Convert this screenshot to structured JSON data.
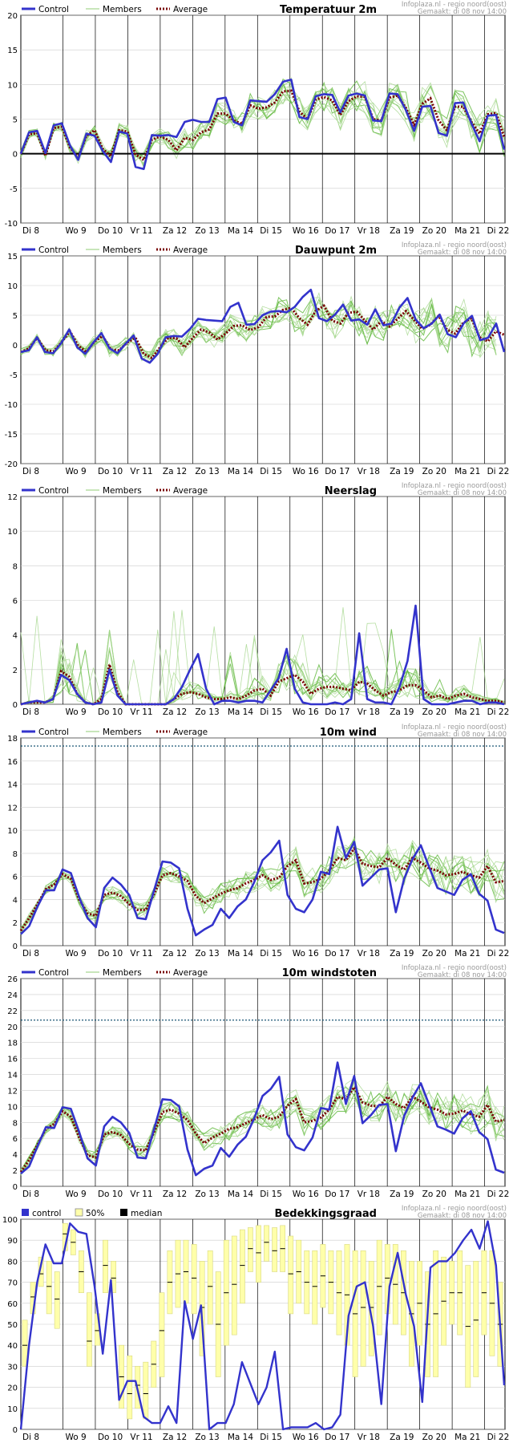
{
  "source": {
    "line1": "Infoplaza.nl - regio noord(oost)",
    "line2": "Gemaakt: di 08 nov  14:00"
  },
  "legend": {
    "control": "Control",
    "members": "Members",
    "average": "Average"
  },
  "cloud_legend": {
    "control": "control",
    "band": "50%",
    "median": "median"
  },
  "x_ticks": [
    "Di 8",
    "Wo 9",
    "Do 10",
    "Vr 11",
    "Za 12",
    "Zo 13",
    "Ma 14",
    "Di 15",
    "Wo 16",
    "Do 17",
    "Vr 18",
    "Za 19",
    "Zo 20",
    "Ma 21",
    "Di 22"
  ],
  "colors": {
    "control": "#3333cc",
    "members": "#66bb44",
    "members_light": "#a8d890",
    "average": "#770000",
    "band": "#ffffaa",
    "band_edge": "#d8d880",
    "threshold": "#004466",
    "grid": "#cccccc"
  },
  "chart_data": [
    {
      "type": "line",
      "title": "Temperatuur 2m",
      "ylim": [
        -10,
        20
      ],
      "yticks": [
        -10,
        -5,
        0,
        5,
        10,
        15,
        20
      ],
      "zero_line": true,
      "series": [
        {
          "name": "Control",
          "values": [
            0,
            3.1,
            3.3,
            0.1,
            4.1,
            4.4,
            1.2,
            -0.9,
            2.9,
            2.6,
            0.4,
            -1.2,
            3.2,
            2.9,
            -1.9,
            -2.2,
            2.7,
            2.6,
            2.7,
            2.4,
            4.6,
            4.9,
            4.6,
            4.6,
            7.9,
            8.1,
            4.6,
            4.1,
            7.7,
            7.6,
            7.5,
            8.6,
            10.4,
            10.7,
            5.3,
            5.0,
            8.3,
            8.6,
            8.5,
            6.0,
            8.4,
            8.7,
            8.4,
            4.8,
            4.7,
            8.7,
            8.6,
            6.3,
            3.3,
            6.8,
            6.9,
            3.0,
            2.6,
            7.3,
            7.4,
            4.4,
            1.8,
            5.5,
            5.6,
            0.6
          ]
        },
        {
          "name": "Average",
          "values": [
            0,
            2.8,
            3.0,
            -0.3,
            3.7,
            3.9,
            0.9,
            -0.6,
            2.6,
            3.4,
            0.7,
            -0.4,
            3.4,
            3.2,
            -0.1,
            -0.9,
            2.0,
            2.5,
            2.0,
            0.5,
            2.3,
            2.0,
            3.1,
            3.5,
            5.8,
            5.8,
            4.8,
            4.3,
            7.0,
            6.5,
            6.7,
            7.4,
            9.0,
            9.1,
            6.1,
            5.0,
            7.8,
            8.2,
            7.7,
            5.6,
            7.6,
            8.3,
            8.2,
            5.0,
            4.8,
            8.1,
            8.4,
            6.6,
            4.2,
            7.2,
            8.0,
            4.8,
            3.4,
            6.8,
            6.8,
            4.6,
            2.9,
            5.7,
            5.9,
            2.4
          ]
        }
      ]
    },
    {
      "type": "line",
      "title": "Dauwpunt 2m",
      "ylim": [
        -20,
        15
      ],
      "yticks": [
        -20,
        -15,
        -10,
        -5,
        0,
        5,
        10,
        15
      ],
      "zero_line": false,
      "series": [
        {
          "name": "Control",
          "values": [
            -1.2,
            -0.9,
            1.3,
            -1.2,
            -1.4,
            0.3,
            2.6,
            -0.4,
            -1.5,
            0.4,
            2.0,
            -0.6,
            -1.4,
            0.2,
            1.6,
            -2.3,
            -3.0,
            -1.5,
            1.3,
            1.5,
            1.4,
            2.7,
            4.4,
            4.2,
            4.1,
            4.0,
            6.4,
            7.1,
            3.4,
            3.5,
            5.0,
            5.6,
            5.7,
            5.5,
            6.4,
            8.1,
            9.3,
            4.5,
            4.0,
            5.1,
            6.8,
            4.1,
            4.3,
            3.4,
            6.0,
            3.3,
            3.6,
            6.3,
            7.9,
            4.3,
            2.8,
            3.6,
            5.1,
            1.8,
            1.3,
            3.7,
            4.9,
            0.8,
            1.2,
            3.6,
            -1.2
          ]
        },
        {
          "name": "Average",
          "values": [
            -1.2,
            -0.6,
            1.2,
            -0.9,
            -1.1,
            0.5,
            2.3,
            -0.1,
            -1.2,
            0.6,
            1.5,
            -0.8,
            -0.9,
            0.4,
            1.2,
            -1.5,
            -2.2,
            -0.4,
            1.2,
            1.1,
            -0.4,
            1.2,
            2.6,
            2.1,
            0.9,
            1.9,
            3.2,
            3.3,
            2.5,
            3.0,
            4.7,
            4.8,
            5.9,
            6.2,
            4.5,
            3.4,
            5.7,
            6.6,
            4.1,
            3.6,
            5.4,
            5.6,
            4.1,
            2.6,
            4.0,
            3.1,
            4.4,
            5.7,
            4.2,
            2.7,
            3.4,
            4.9,
            2.6,
            1.9,
            3.7,
            4.5,
            1.3,
            0.6,
            2.3,
            1.7
          ]
        }
      ]
    },
    {
      "type": "line",
      "title": "Neerslag",
      "ylim": [
        0,
        12
      ],
      "yticks": [
        0,
        2,
        4,
        6,
        8,
        10,
        12
      ],
      "zero_line": false,
      "series": [
        {
          "name": "Control",
          "values": [
            0,
            0.1,
            0.2,
            0.1,
            0.3,
            1.7,
            1.4,
            0.6,
            0.1,
            0,
            0.1,
            2.0,
            0.5,
            0,
            0,
            0,
            0,
            0,
            0,
            0.3,
            1.0,
            2.0,
            2.9,
            0.9,
            0,
            0.2,
            0.2,
            0.1,
            0.2,
            0.2,
            0.1,
            0.8,
            1.5,
            3.2,
            0.9,
            0.1,
            0,
            0,
            0,
            0.1,
            0,
            0.3,
            4.1,
            0.3,
            0.1,
            0.1,
            0,
            1.0,
            2.5,
            5.7,
            0.3,
            0,
            0,
            0,
            0.1,
            0.2,
            0.2,
            0,
            0.1,
            0.1,
            0
          ]
        },
        {
          "name": "Average",
          "values": [
            0,
            0.1,
            0.1,
            0.1,
            0.3,
            1.9,
            1.6,
            0.6,
            0.1,
            0,
            0.3,
            2.3,
            0.7,
            0,
            0,
            0,
            0,
            0,
            0,
            0.3,
            0.6,
            0.7,
            0.6,
            0.4,
            0.3,
            0.3,
            0.4,
            0.3,
            0.5,
            0.8,
            0.9,
            0.5,
            1.3,
            1.5,
            1.7,
            1.3,
            0.6,
            0.9,
            1.0,
            1.0,
            0.9,
            0.8,
            1.3,
            1.2,
            0.8,
            0.5,
            0.7,
            0.8,
            1.1,
            1.1,
            0.8,
            0.4,
            0.5,
            0.3,
            0.5,
            0.6,
            0.4,
            0.3,
            0.2,
            0.2,
            0.1
          ]
        }
      ]
    },
    {
      "type": "line",
      "title": "10m wind",
      "ylim": [
        0,
        18
      ],
      "yticks": [
        0,
        2,
        4,
        6,
        8,
        10,
        12,
        14,
        16,
        18
      ],
      "threshold": 17.3,
      "zero_line": false,
      "series": [
        {
          "name": "Control",
          "values": [
            1.0,
            1.7,
            3.4,
            4.8,
            4.8,
            6.6,
            6.3,
            4.2,
            2.4,
            1.6,
            5.0,
            5.9,
            5.3,
            4.4,
            2.4,
            2.3,
            4.8,
            7.3,
            7.2,
            6.7,
            3.2,
            0.9,
            1.4,
            1.8,
            3.2,
            2.4,
            3.4,
            4.0,
            5.5,
            7.4,
            8.1,
            9.1,
            4.4,
            3.2,
            2.9,
            4.0,
            6.4,
            6.2,
            10.3,
            7.6,
            9.0,
            5.2,
            5.9,
            6.6,
            6.7,
            2.9,
            5.8,
            7.5,
            8.7,
            6.8,
            5.0,
            4.7,
            4.4,
            5.7,
            6.2,
            4.5,
            3.9,
            1.4,
            1.1
          ]
        },
        {
          "name": "Average",
          "values": [
            1.3,
            2.4,
            3.6,
            4.9,
            5.3,
            6.2,
            5.8,
            4.0,
            2.8,
            2.6,
            4.4,
            4.6,
            4.3,
            3.6,
            3.1,
            3.1,
            4.5,
            6.1,
            6.3,
            6.0,
            5.6,
            4.3,
            3.7,
            4.1,
            4.5,
            4.8,
            5.0,
            5.4,
            5.7,
            6.1,
            5.7,
            5.9,
            6.9,
            7.4,
            5.4,
            5.5,
            5.8,
            6.5,
            7.6,
            7.4,
            8.4,
            7.1,
            6.9,
            6.8,
            7.6,
            7.0,
            6.6,
            7.6,
            7.2,
            6.7,
            6.5,
            6.1,
            6.2,
            6.4,
            6.1,
            5.9,
            6.9,
            5.5,
            5.6
          ]
        }
      ]
    },
    {
      "type": "line",
      "title": "10m windstoten",
      "ylim": [
        0,
        26
      ],
      "yticks": [
        0,
        2,
        4,
        6,
        8,
        10,
        12,
        14,
        16,
        18,
        20,
        22,
        24,
        26
      ],
      "threshold": 20.8,
      "zero_line": false,
      "series": [
        {
          "name": "Control",
          "values": [
            1.6,
            2.5,
            5.0,
            7.4,
            7.3,
            9.9,
            9.7,
            6.8,
            3.5,
            2.6,
            7.5,
            8.7,
            8.0,
            6.7,
            3.6,
            3.5,
            7.2,
            10.9,
            10.8,
            10.0,
            4.6,
            1.4,
            2.2,
            2.6,
            4.8,
            3.7,
            5.2,
            6.2,
            8.5,
            11.3,
            12.2,
            13.7,
            6.5,
            4.9,
            4.5,
            6.1,
            9.8,
            9.6,
            15.5,
            10.3,
            13.8,
            7.9,
            8.9,
            10.2,
            10.3,
            4.4,
            8.8,
            11.1,
            12.9,
            10.2,
            7.5,
            7.1,
            6.6,
            8.5,
            9.4,
            6.8,
            5.9,
            2.1,
            1.7
          ]
        },
        {
          "name": "Average",
          "values": [
            1.8,
            3.3,
            5.2,
            7.2,
            7.8,
            9.4,
            8.7,
            6.1,
            3.9,
            3.6,
            6.5,
            6.8,
            6.4,
            5.3,
            4.6,
            4.5,
            6.8,
            9.3,
            9.6,
            9.1,
            8.3,
            6.6,
            5.4,
            6.1,
            6.6,
            7.2,
            7.4,
            7.9,
            8.4,
            8.9,
            8.4,
            8.7,
            10.1,
            10.9,
            8.0,
            8.2,
            8.6,
            9.6,
            11.2,
            10.9,
            12.4,
            10.5,
            10.1,
            10.0,
            11.2,
            10.3,
            9.8,
            11.2,
            10.6,
            9.9,
            9.6,
            9.0,
            9.1,
            9.5,
            9.0,
            8.7,
            10.2,
            8.1,
            8.3
          ]
        }
      ]
    },
    {
      "type": "line",
      "title": "Bedekkingsgraad",
      "ylim": [
        0,
        100
      ],
      "yticks": [
        0,
        10,
        20,
        30,
        40,
        50,
        60,
        70,
        80,
        90,
        100
      ],
      "series": [
        {
          "name": "control",
          "values": [
            0,
            40,
            70,
            88,
            79,
            79,
            98,
            94,
            93,
            68,
            36,
            71,
            14,
            23,
            23,
            6,
            3,
            3,
            11,
            3,
            61,
            43,
            59,
            0,
            3,
            3,
            12,
            32,
            22,
            12,
            20,
            37,
            0,
            1,
            1,
            1,
            3,
            0,
            1,
            7,
            54,
            68,
            70,
            49,
            12,
            68,
            84,
            64,
            49,
            13,
            77,
            80,
            80,
            84,
            90,
            95,
            86,
            99,
            78,
            21
          ]
        },
        {
          "name": "50%",
          "ranges": [
            [
              30,
              52
            ],
            [
              55,
              70
            ],
            [
              68,
              82
            ],
            [
              55,
              80
            ],
            [
              48,
              75
            ],
            [
              85,
              98
            ],
            [
              83,
              95
            ],
            [
              65,
              85
            ],
            [
              30,
              65
            ],
            [
              40,
              55
            ],
            [
              65,
              90
            ],
            [
              65,
              80
            ],
            [
              10,
              40
            ],
            [
              5,
              35
            ],
            [
              10,
              30
            ],
            [
              5,
              32
            ],
            [
              20,
              42
            ],
            [
              25,
              65
            ],
            [
              55,
              85
            ],
            [
              58,
              90
            ],
            [
              60,
              90
            ],
            [
              55,
              88
            ],
            [
              35,
              80
            ],
            [
              50,
              85
            ],
            [
              25,
              75
            ],
            [
              40,
              90
            ],
            [
              45,
              92
            ],
            [
              60,
              95
            ],
            [
              75,
              96
            ],
            [
              70,
              97
            ],
            [
              80,
              97
            ],
            [
              75,
              96
            ],
            [
              75,
              97
            ],
            [
              55,
              92
            ],
            [
              60,
              90
            ],
            [
              55,
              85
            ],
            [
              50,
              85
            ],
            [
              58,
              88
            ],
            [
              55,
              85
            ],
            [
              45,
              85
            ],
            [
              40,
              88
            ],
            [
              25,
              85
            ],
            [
              30,
              85
            ],
            [
              35,
              80
            ],
            [
              45,
              90
            ],
            [
              55,
              88
            ],
            [
              50,
              88
            ],
            [
              45,
              85
            ],
            [
              30,
              80
            ],
            [
              40,
              80
            ],
            [
              25,
              75
            ],
            [
              25,
              85
            ],
            [
              40,
              82
            ],
            [
              50,
              80
            ],
            [
              45,
              85
            ],
            [
              20,
              78
            ],
            [
              25,
              80
            ],
            [
              45,
              85
            ],
            [
              35,
              85
            ],
            [
              30,
              70
            ]
          ]
        },
        {
          "name": "median",
          "values": [
            40,
            63,
            74,
            68,
            62,
            93,
            89,
            75,
            42,
            47,
            78,
            72,
            25,
            17,
            21,
            17,
            31,
            47,
            70,
            74,
            75,
            72,
            58,
            68,
            50,
            65,
            69,
            78,
            86,
            84,
            89,
            85,
            86,
            74,
            75,
            70,
            68,
            73,
            70,
            65,
            64,
            55,
            58,
            58,
            68,
            72,
            69,
            65,
            55,
            60,
            50,
            55,
            61,
            65,
            65,
            49,
            52,
            65,
            60,
            50
          ]
        }
      ]
    }
  ]
}
